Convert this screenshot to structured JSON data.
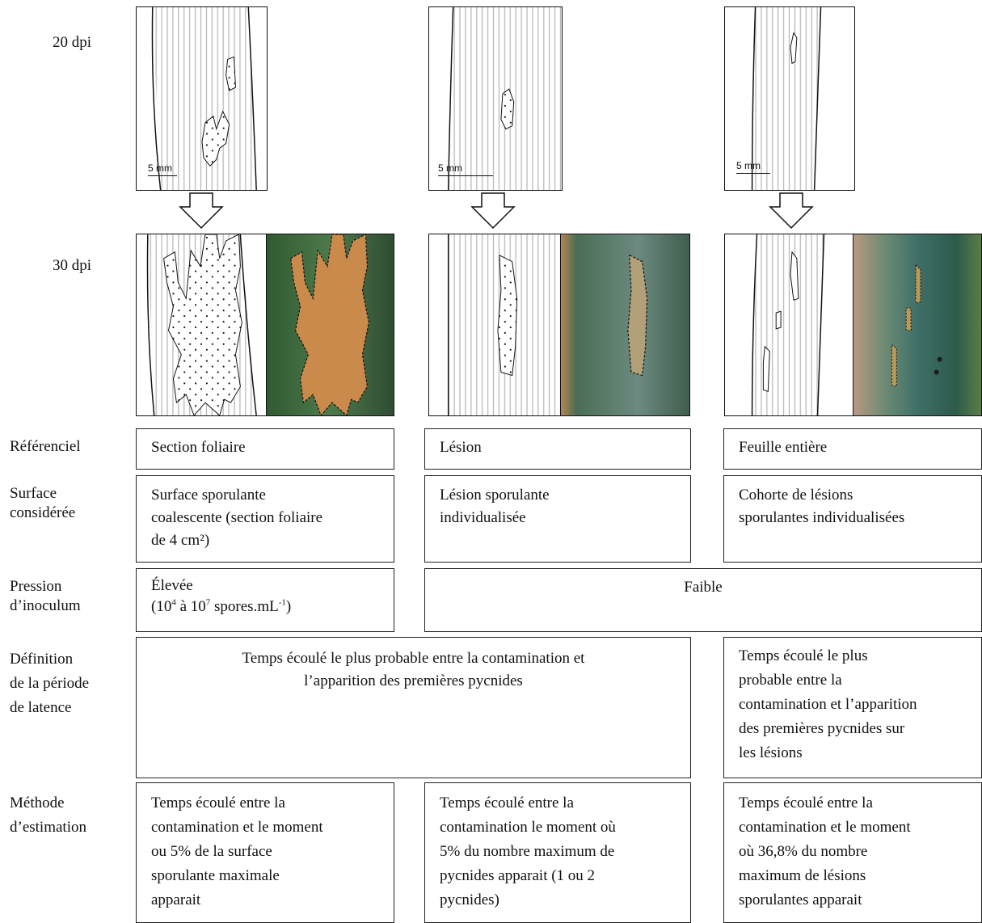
{
  "time_labels": {
    "t20": "20 dpi",
    "t30": "30 dpi"
  },
  "scale_label": "5 mm",
  "row_labels": {
    "referentiel": "Référenciel",
    "surface": [
      "Surface",
      "considérée"
    ],
    "pression": [
      "Pression",
      "d’inoculum"
    ],
    "definition": [
      "Définition",
      "de la période",
      "de latence"
    ],
    "methode": [
      "Méthode",
      "d’estimation"
    ]
  },
  "referentiel": [
    "Section foliaire",
    "Lésion",
    "Feuille entière"
  ],
  "surface": [
    [
      "Surface sporulante",
      "coalescente (section foliaire",
      "de 4 cm²)"
    ],
    [
      "Lésion sporulante",
      "individualisée"
    ],
    [
      "Cohorte de lésions",
      "sporulantes individualisées"
    ]
  ],
  "pression": {
    "high_label": "Élevée",
    "high_prefix": "(10",
    "high_exp1": "4",
    "high_mid": " à 10",
    "high_exp2": "7",
    "high_unit": " spores.mL",
    "high_exp3": "-1",
    "high_suffix": ")",
    "low_label": "Faible"
  },
  "definition": {
    "merged": [
      "Temps écoulé le plus probable entre la contamination et",
      "l’apparition des premières pycnides"
    ],
    "third": [
      "Temps écoulé le plus",
      "probable entre la",
      "contamination et l’apparition",
      "des premières pycnides sur",
      "les lésions"
    ]
  },
  "methode": [
    [
      "Temps écoulé entre la",
      "contamination et le moment",
      "ou 5% de la surface",
      "sporulante maximale",
      "apparait"
    ],
    [
      "Temps écoulé entre la",
      "contamination le moment où",
      "5% du nombre maximum de",
      "pycnides apparait (1 ou 2",
      "pycnides)"
    ],
    [
      "Temps écoulé entre la",
      "contamination et le moment",
      "où 36,8% du nombre",
      "maximum de lésions",
      "sporulantes apparait"
    ]
  ],
  "icons": {
    "arrow": "down-arrow-icon",
    "leaf": "leaf-drawing",
    "photo": "leaf-photo"
  },
  "colors": {
    "photo_green": "#4e7a4a",
    "photo_dark": "#2f4c34",
    "lesion_tan": "#c98a4b",
    "stripe": "#b8b8b8"
  }
}
